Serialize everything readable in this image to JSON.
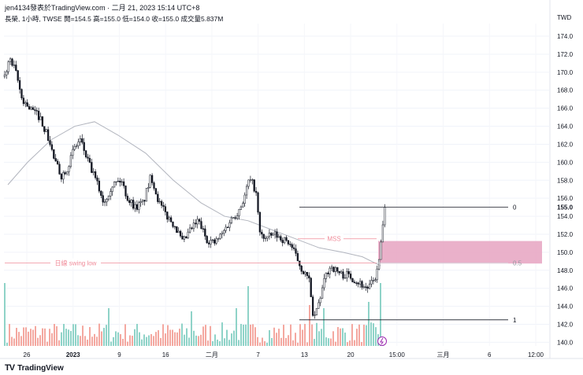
{
  "header": {
    "line1": "jen4134發表於TradingView.com · 二月 21, 2023 15:14 UTC+8",
    "line2": "長榮, 1小時, TWSE  開=154.5  高=155.0  低=154.0  收=155.0  成交量5.837M"
  },
  "footer": {
    "brand": "TradingView",
    "logo": "TV"
  },
  "chart_data": {
    "type": "candlestick",
    "currency": "TWD",
    "ylim": [
      139.6,
      175.4
    ],
    "y_ticks": [
      140,
      142,
      144,
      146,
      148,
      150,
      152,
      154,
      156,
      158,
      160,
      162,
      164,
      166,
      168,
      170,
      172,
      174
    ],
    "last_price": 155.0,
    "x_ticks": [
      "26",
      "2023",
      "9",
      "16",
      "二月",
      "7",
      "13",
      "20",
      "15:00",
      "三月",
      "6",
      "12:00"
    ],
    "close_path": [
      [
        0,
        169.5
      ],
      [
        6,
        171.5
      ],
      [
        14,
        170.0
      ],
      [
        22,
        167.0
      ],
      [
        32,
        166.0
      ],
      [
        45,
        165.0
      ],
      [
        56,
        162.5
      ],
      [
        64,
        160.0
      ],
      [
        72,
        158.5
      ],
      [
        80,
        159.5
      ],
      [
        88,
        161.5
      ],
      [
        96,
        162.5
      ],
      [
        106,
        160.0
      ],
      [
        118,
        157.5
      ],
      [
        126,
        155.5
      ],
      [
        136,
        157.5
      ],
      [
        148,
        158.0
      ],
      [
        156,
        156.0
      ],
      [
        166,
        155.0
      ],
      [
        176,
        155.5
      ],
      [
        186,
        158.5
      ],
      [
        196,
        155.5
      ],
      [
        206,
        154.0
      ],
      [
        216,
        153.0
      ],
      [
        226,
        151.0
      ],
      [
        236,
        152.5
      ],
      [
        246,
        153.5
      ],
      [
        256,
        151.5
      ],
      [
        266,
        151.0
      ],
      [
        276,
        152.0
      ],
      [
        286,
        153.5
      ],
      [
        296,
        154.5
      ],
      [
        304,
        156.0
      ],
      [
        310,
        158.0
      ],
      [
        316,
        157.5
      ],
      [
        320,
        156.0
      ],
      [
        324,
        152.0
      ],
      [
        332,
        151.5
      ],
      [
        342,
        152.0
      ],
      [
        352,
        151.5
      ],
      [
        362,
        151.0
      ],
      [
        370,
        149.5
      ],
      [
        378,
        148.0
      ],
      [
        382,
        147.5
      ],
      [
        388,
        146.5
      ],
      [
        391,
        142.5
      ],
      [
        396,
        143.5
      ],
      [
        402,
        145.5
      ],
      [
        408,
        147.5
      ],
      [
        414,
        148.5
      ],
      [
        420,
        148.0
      ],
      [
        428,
        147.5
      ],
      [
        436,
        147.5
      ],
      [
        444,
        147.0
      ],
      [
        452,
        146.5
      ],
      [
        460,
        146.0
      ],
      [
        466,
        146.5
      ],
      [
        472,
        147.5
      ],
      [
        476,
        149.5
      ],
      [
        480,
        153.0
      ],
      [
        483,
        155.0
      ]
    ],
    "moving_average": [
      [
        5,
        157.5
      ],
      [
        30,
        160.0
      ],
      [
        60,
        162.5
      ],
      [
        90,
        164.0
      ],
      [
        115,
        164.5
      ],
      [
        145,
        163.0
      ],
      [
        180,
        161.0
      ],
      [
        215,
        158.0
      ],
      [
        250,
        155.5
      ],
      [
        280,
        154.0
      ],
      [
        310,
        153.5
      ],
      [
        340,
        152.5
      ],
      [
        370,
        151.5
      ],
      [
        400,
        150.5
      ],
      [
        430,
        150.0
      ],
      [
        455,
        149.5
      ],
      [
        478,
        148.5
      ]
    ],
    "volume": [
      {
        "from": 0,
        "to": 490,
        "peaks": [
          [
            0,
            1.0
          ],
          [
            108,
            0.3
          ],
          [
            132,
            0.6
          ],
          [
            236,
            0.55
          ],
          [
            294,
            0.6
          ],
          [
            308,
            0.95
          ],
          [
            388,
            0.65
          ],
          [
            405,
            0.6
          ],
          [
            462,
            0.7
          ],
          [
            476,
            1.0
          ]
        ]
      }
    ],
    "annotations": [
      {
        "label": "0",
        "price": 155.0,
        "x": [
          380,
          490
        ]
      },
      {
        "label": "1",
        "price": 142.5,
        "x": [
          380,
          490
        ]
      },
      {
        "label": "MSS",
        "price": 151.5,
        "x": [
          378,
          478
        ]
      },
      {
        "label": "日線 swing low",
        "price": 148.8,
        "x": [
          6,
          478
        ]
      },
      {
        "label": "0.5",
        "price": 148.8,
        "x": [
          478,
          688
        ]
      }
    ],
    "zone": {
      "from_price": 148.75,
      "to_price": 151.25,
      "x": [
        480,
        688
      ],
      "color": "#e8a9c4"
    },
    "colors": {
      "up": "#26a69a",
      "down": "#131722",
      "volume_up": "#8fd3c8",
      "volume_down": "#f4a8a0",
      "ma": "#b2b5be",
      "mss": "#f08c9a"
    }
  }
}
